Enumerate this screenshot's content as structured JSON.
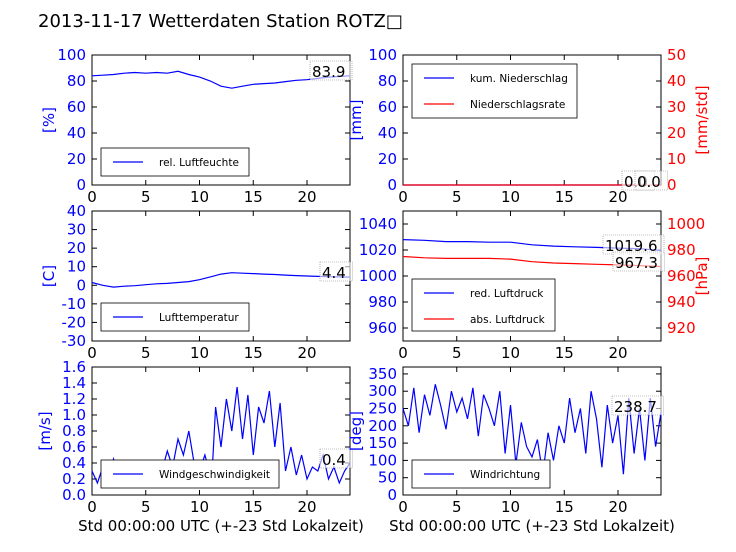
{
  "page_title": "2013-11-17 Wetterdaten Station ROTZ□",
  "colors": {
    "blue": "#0000ff",
    "red": "#ff0000",
    "axis": "#000000"
  },
  "chart_data": [
    {
      "id": "humidity",
      "type": "line",
      "x_ticks": [
        0,
        5,
        10,
        15,
        20
      ],
      "y_ticks": [
        0,
        20,
        40,
        60,
        80,
        100
      ],
      "xlim": [
        0,
        24
      ],
      "ylim": [
        0,
        100
      ],
      "ylabel": "[%]",
      "annotations": [
        "83.9"
      ],
      "legend_placement": "lower-left",
      "series": [
        {
          "name": "rel. Luftfeuchte",
          "color": "#0000ff",
          "x": [
            0,
            1,
            2,
            3,
            4,
            5,
            6,
            7,
            8,
            9,
            10,
            11,
            12,
            13,
            14,
            15,
            16,
            17,
            18,
            19,
            20,
            21,
            22,
            23,
            24
          ],
          "y": [
            84,
            84.5,
            85,
            86,
            86.5,
            86,
            86.5,
            86,
            87.5,
            85,
            83,
            80,
            76,
            74.5,
            76,
            77.5,
            78,
            78.5,
            79.5,
            80.5,
            81,
            82,
            83,
            83.5,
            84
          ]
        }
      ]
    },
    {
      "id": "precipitation",
      "type": "line",
      "x_ticks": [
        0,
        5,
        10,
        15,
        20
      ],
      "y_ticks": [
        0,
        20,
        40,
        60,
        80,
        100
      ],
      "y2_ticks": [
        0,
        10,
        20,
        30,
        40,
        50
      ],
      "xlim": [
        0,
        24
      ],
      "ylim": [
        0,
        100
      ],
      "y2lim": [
        0,
        50
      ],
      "ylabel": "[mm]",
      "y2label": "[mm/std]",
      "annotations": [
        "0.0",
        "0.0"
      ],
      "legend_placement": "upper-left",
      "series": [
        {
          "name": "kum. Niederschlag",
          "color": "#0000ff",
          "axis": "left",
          "x": [
            0,
            24
          ],
          "y": [
            0,
            0
          ]
        },
        {
          "name": "Niederschlagsrate",
          "color": "#ff0000",
          "axis": "right",
          "x": [
            0,
            24
          ],
          "y": [
            0,
            0
          ]
        }
      ]
    },
    {
      "id": "temperature",
      "type": "line",
      "x_ticks": [
        0,
        5,
        10,
        15,
        20
      ],
      "y_ticks": [
        -30,
        -20,
        -10,
        0,
        10,
        20,
        30,
        40
      ],
      "xlim": [
        0,
        24
      ],
      "ylim": [
        -30,
        40
      ],
      "ylabel": "[C]",
      "annotations": [
        "4.4"
      ],
      "legend_placement": "lower-left",
      "series": [
        {
          "name": "Lufttemperatur",
          "color": "#0000ff",
          "x": [
            0,
            1,
            2,
            3,
            4,
            5,
            6,
            7,
            8,
            9,
            10,
            11,
            12,
            13,
            14,
            15,
            16,
            17,
            18,
            19,
            20,
            21,
            22,
            23,
            24
          ],
          "y": [
            1.5,
            0,
            -1,
            -0.5,
            -0.2,
            0.3,
            0.8,
            1,
            1.5,
            2,
            3,
            4.5,
            6,
            6.8,
            6.5,
            6.3,
            6,
            5.8,
            5.5,
            5.2,
            5,
            4.8,
            4.6,
            4.5,
            4.4
          ]
        }
      ]
    },
    {
      "id": "pressure",
      "type": "line",
      "x_ticks": [
        0,
        5,
        10,
        15,
        20
      ],
      "y_ticks": [
        960,
        980,
        1000,
        1020,
        1040
      ],
      "y2_ticks": [
        920,
        940,
        960,
        980,
        1000
      ],
      "xlim": [
        0,
        24
      ],
      "ylim": [
        950,
        1050
      ],
      "y2lim": [
        910,
        1010
      ],
      "ylabel": "",
      "y2label": "[hPa]",
      "annotations": [
        "1019.6",
        "967.3"
      ],
      "legend_placement": "lower-left",
      "series": [
        {
          "name": "red. Luftdruck",
          "color": "#0000ff",
          "axis": "left",
          "x": [
            0,
            2,
            4,
            6,
            8,
            10,
            12,
            14,
            16,
            18,
            20,
            22,
            24
          ],
          "y": [
            1028,
            1027.5,
            1026.5,
            1026.5,
            1026,
            1026,
            1024,
            1023,
            1022.5,
            1022,
            1021.5,
            1021,
            1019.6
          ]
        },
        {
          "name": "abs. Luftdruck",
          "color": "#ff0000",
          "axis": "right",
          "x": [
            0,
            2,
            4,
            6,
            8,
            10,
            12,
            14,
            16,
            18,
            20,
            22,
            24
          ],
          "y": [
            975,
            974,
            973.5,
            973.5,
            973.5,
            973,
            971,
            970,
            969.5,
            969,
            968.5,
            968,
            967.3
          ]
        }
      ]
    },
    {
      "id": "wind_speed",
      "type": "line",
      "x_ticks": [
        0,
        5,
        10,
        15,
        20
      ],
      "y_ticks": [
        0.0,
        0.2,
        0.4,
        0.6,
        0.8,
        1.0,
        1.2,
        1.4,
        1.6
      ],
      "xlim": [
        0,
        24
      ],
      "ylim": [
        0,
        1.6
      ],
      "ylabel": "[m/s]",
      "xlabel": "Std 00:00:00 UTC (+-23 Std Lokalzeit)",
      "annotations": [
        "0.4"
      ],
      "legend_placement": "lower-left",
      "series": [
        {
          "name": "Windgeschwindigkeit",
          "color": "#0000ff",
          "x": [
            0,
            0.5,
            1,
            1.5,
            2,
            2.5,
            3,
            3.5,
            4,
            4.5,
            5,
            5.5,
            6,
            6.5,
            7,
            7.5,
            8,
            8.5,
            9,
            9.5,
            10,
            10.5,
            11,
            11.2,
            11.5,
            12,
            12.5,
            13,
            13.5,
            14,
            14.5,
            15,
            15.5,
            16,
            16.5,
            17,
            17.5,
            18,
            18.5,
            19,
            19.5,
            20,
            20.5,
            21,
            21.5,
            22,
            22.5,
            23,
            23.5,
            24
          ],
          "y": [
            0.3,
            0.15,
            0.35,
            0.2,
            0.45,
            0.25,
            0.15,
            0.3,
            0.2,
            0.35,
            0.25,
            0.2,
            0.4,
            0.3,
            0.55,
            0.35,
            0.7,
            0.5,
            0.8,
            0.4,
            0.3,
            0.5,
            0.25,
            0.35,
            1.1,
            0.6,
            1.2,
            0.8,
            1.35,
            0.7,
            1.25,
            0.5,
            1.1,
            0.9,
            1.3,
            0.6,
            1.15,
            0.3,
            0.6,
            0.25,
            0.5,
            0.2,
            0.35,
            0.3,
            0.5,
            0.2,
            0.35,
            0.15,
            0.3,
            0.4
          ]
        }
      ]
    },
    {
      "id": "wind_direction",
      "type": "line",
      "x_ticks": [
        0,
        5,
        10,
        15,
        20
      ],
      "y_ticks": [
        0,
        50,
        100,
        150,
        200,
        250,
        300,
        350
      ],
      "xlim": [
        0,
        24
      ],
      "ylim": [
        0,
        370
      ],
      "ylabel": "[deg]",
      "xlabel": "Std 00:00:00 UTC (+-23 Std Lokalzeit)",
      "annotations": [
        "238.7"
      ],
      "legend_placement": "lower-left",
      "series": [
        {
          "name": "Windrichtung",
          "color": "#0000ff",
          "x": [
            0,
            0.5,
            1,
            1.5,
            2,
            2.5,
            3,
            3.5,
            4,
            4.5,
            5,
            5.5,
            6,
            6.5,
            7,
            7.5,
            8,
            8.5,
            9,
            9.5,
            10,
            10.5,
            11,
            11.5,
            12,
            12.5,
            13,
            13.5,
            14,
            14.5,
            15,
            15.5,
            16,
            16.5,
            17,
            17.5,
            18,
            18.5,
            19,
            19.5,
            20,
            20.5,
            21,
            21.5,
            22,
            22.5,
            23,
            23.5,
            24
          ],
          "y": [
            250,
            200,
            310,
            180,
            290,
            230,
            320,
            260,
            190,
            300,
            240,
            280,
            220,
            310,
            170,
            290,
            250,
            200,
            300,
            120,
            260,
            90,
            210,
            140,
            110,
            160,
            60,
            180,
            100,
            200,
            150,
            280,
            180,
            250,
            120,
            300,
            220,
            80,
            260,
            150,
            230,
            60,
            280,
            120,
            250,
            100,
            280,
            140,
            238
          ]
        }
      ]
    }
  ]
}
